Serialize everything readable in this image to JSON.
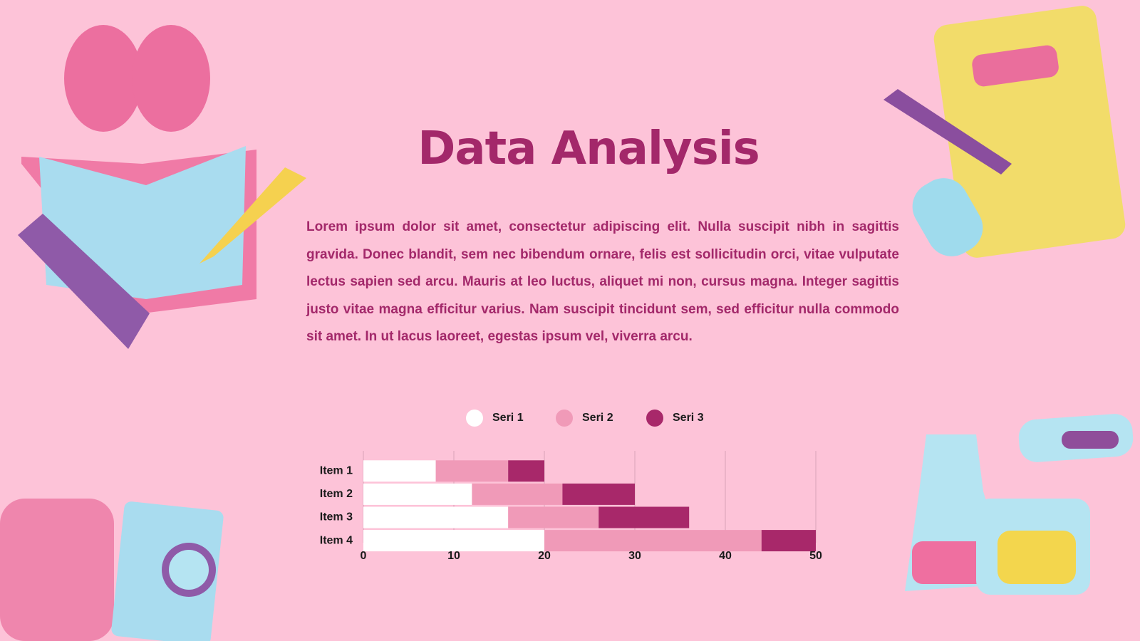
{
  "title": "Data Analysis",
  "body": "Lorem ipsum dolor sit amet, consectetur adipiscing elit. Nulla suscipit nibh in sagittis gravida. Donec blandit, sem nec bibendum ornare, felis est sollicitudin orci, vitae vulputate lectus sapien sed arcu. Mauris at leo luctus, aliquet mi non, cursus magna. Integer sagittis justo vitae magna efficitur varius. Nam suscipit tincidunt sem, sed efficitur nulla commodo sit amet. In ut lacus laoreet, egestas ipsum vel, viverra arcu.",
  "chart_data": {
    "type": "stacked-bar-horizontal",
    "categories": [
      "Item 1",
      "Item 2",
      "Item 3",
      "Item 4"
    ],
    "series": [
      {
        "name": "Seri 1",
        "color": "#ffffff",
        "values": [
          8,
          12,
          16,
          20
        ]
      },
      {
        "name": "Seri 2",
        "color": "#f09ab8",
        "values": [
          8,
          10,
          10,
          24
        ]
      },
      {
        "name": "Seri 3",
        "color": "#a8286a",
        "values": [
          4,
          8,
          10,
          6
        ]
      }
    ],
    "xlim": [
      0,
      50
    ],
    "xticks": [
      0,
      10,
      20,
      30,
      40,
      50
    ],
    "grid": true,
    "legend": "top"
  }
}
